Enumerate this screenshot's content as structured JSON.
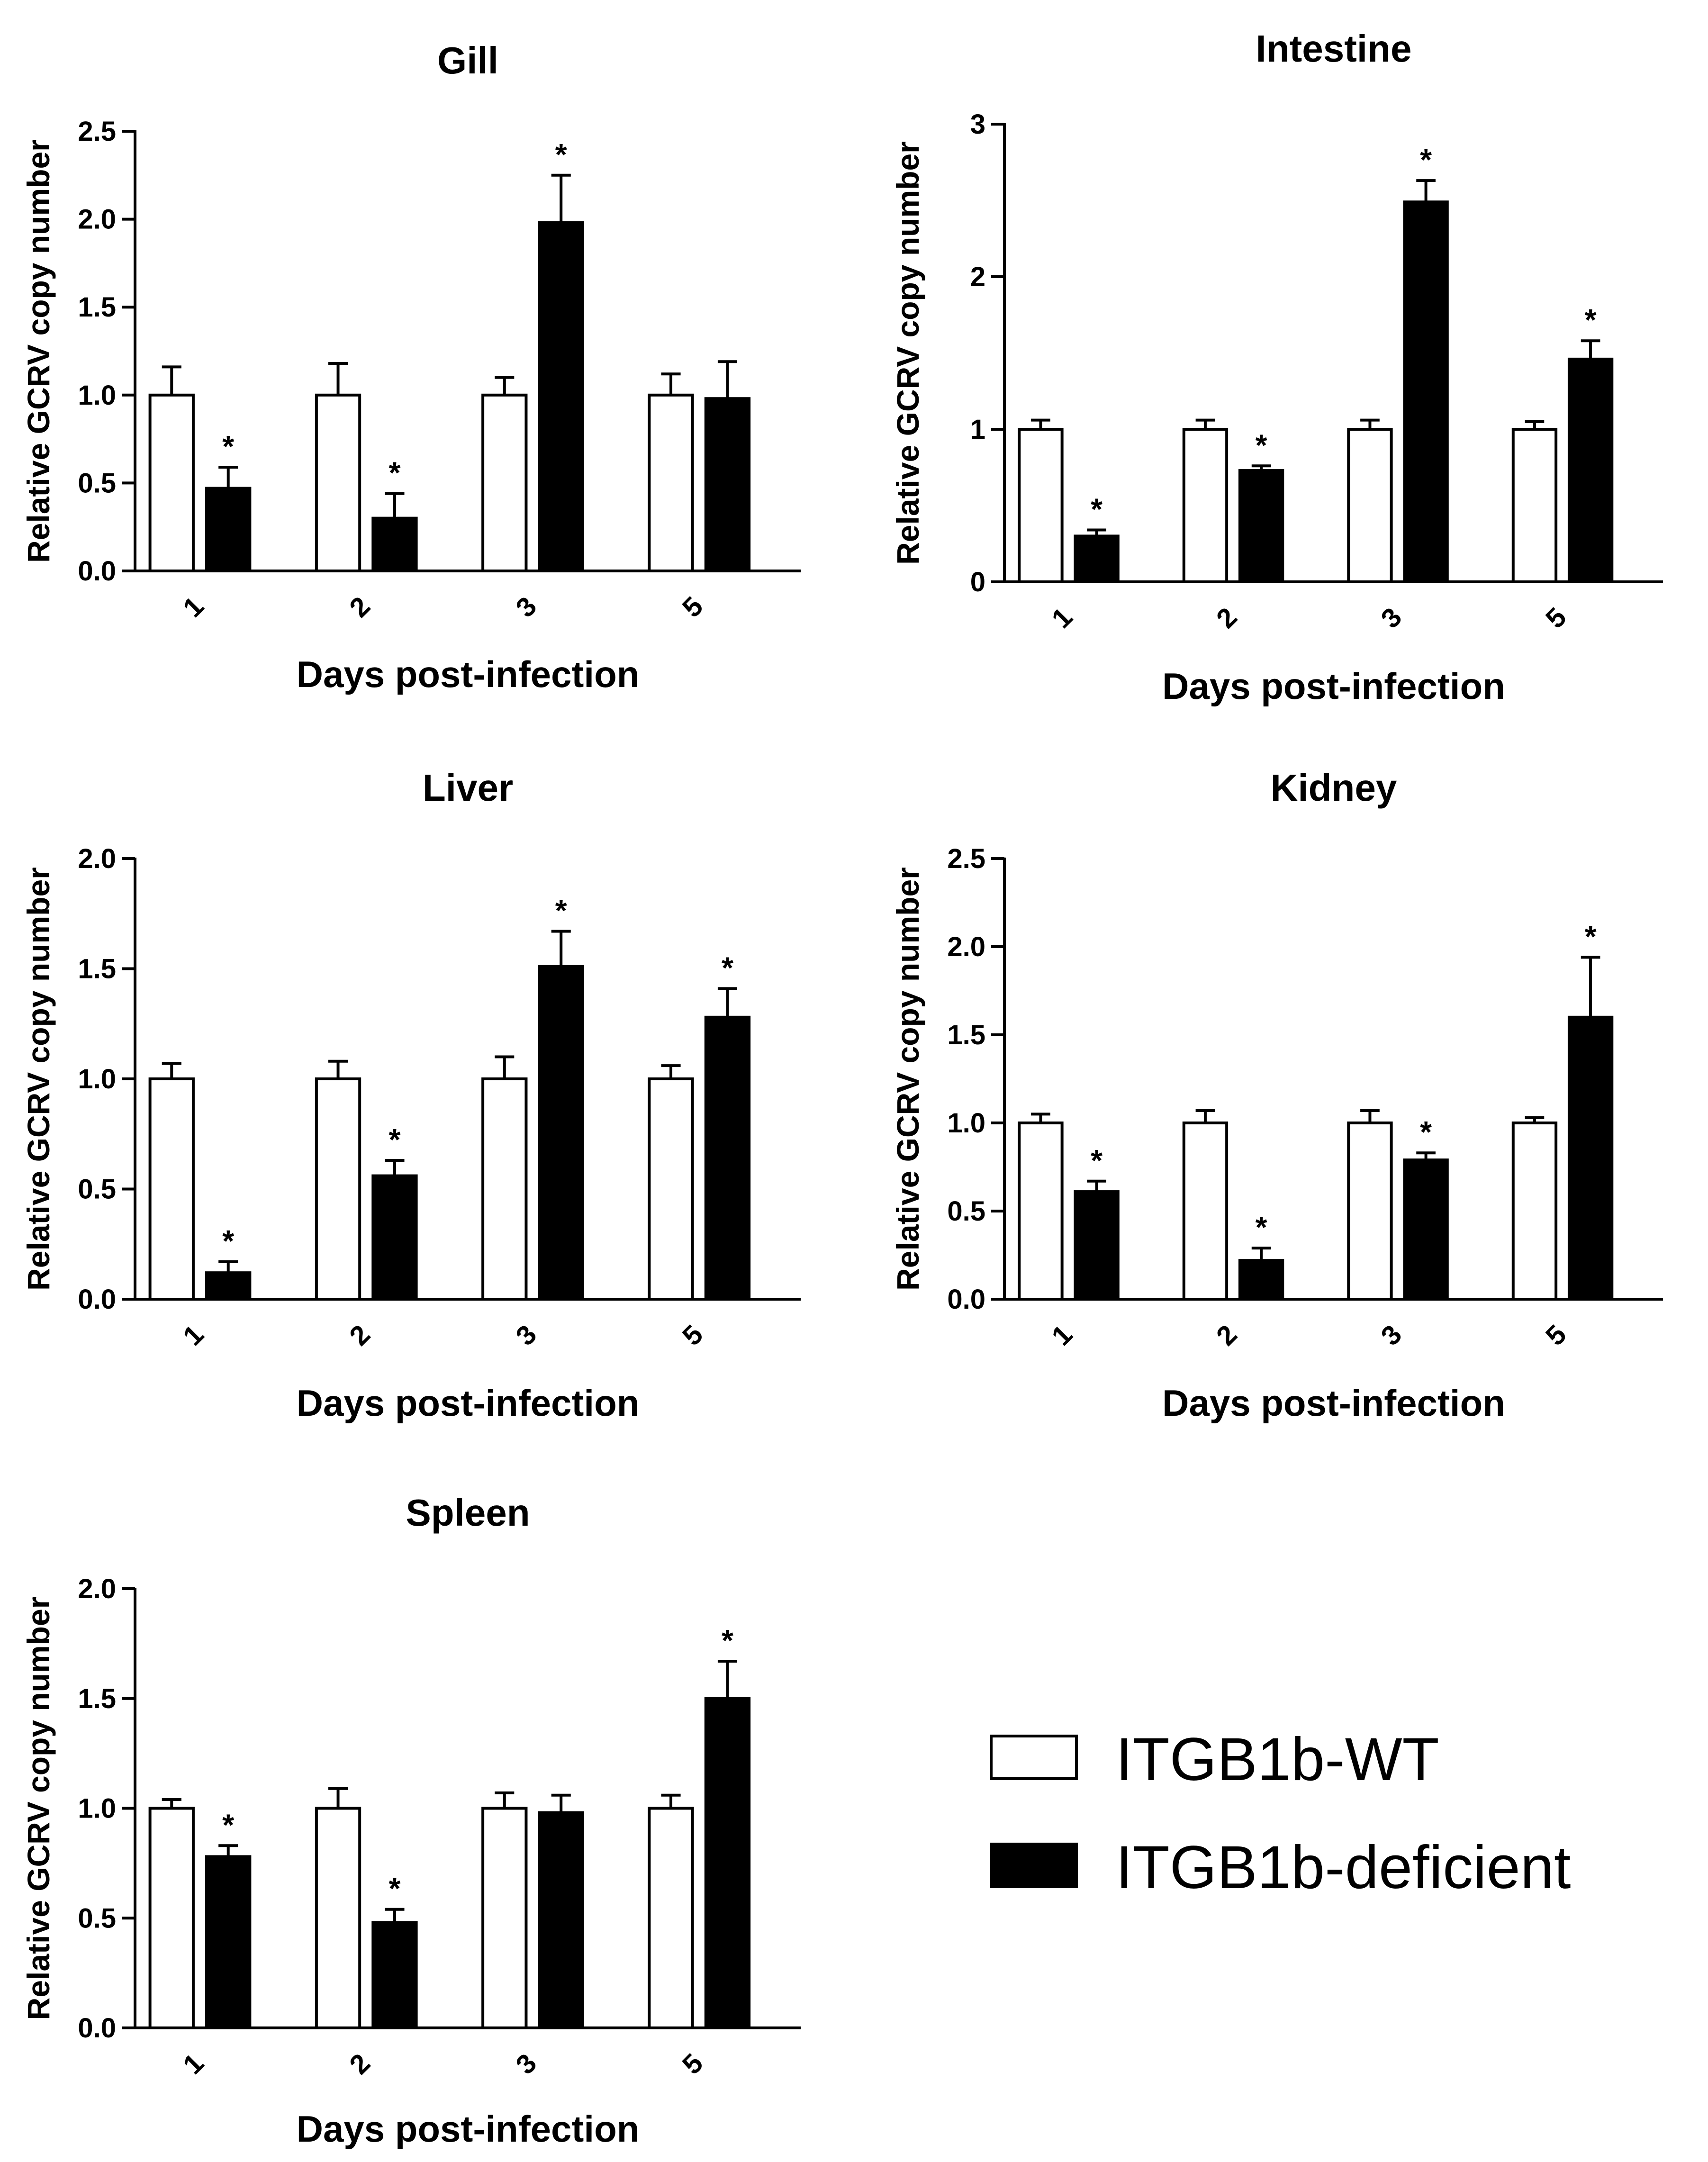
{
  "figure": {
    "legend": {
      "entries": [
        {
          "label": "ITGB1b-WT",
          "fill": "#ffffff"
        },
        {
          "label": "ITGB1b-deficient",
          "fill": "#000000"
        }
      ]
    }
  },
  "chart_data": [
    {
      "type": "bar",
      "title": "Gill",
      "xlabel": "Days post-infection",
      "ylabel": "Relative GCRV copy number",
      "categories": [
        "1",
        "2",
        "3",
        "5"
      ],
      "ylim": [
        0,
        2.5
      ],
      "yticks": [
        "0.0",
        "0.5",
        "1.0",
        "1.5",
        "2.0",
        "2.5"
      ],
      "series": [
        {
          "name": "ITGB1b-WT",
          "values": [
            1.0,
            1.0,
            1.0,
            1.0
          ],
          "errors": [
            0.16,
            0.18,
            0.1,
            0.12
          ]
        },
        {
          "name": "ITGB1b-deficient",
          "values": [
            0.47,
            0.3,
            1.98,
            0.98
          ],
          "errors": [
            0.12,
            0.14,
            0.27,
            0.21
          ]
        }
      ],
      "significance": [
        "*",
        "*",
        "*",
        ""
      ]
    },
    {
      "type": "bar",
      "title": "Intestine",
      "xlabel": "Days post-infection",
      "ylabel": "Relative GCRV copy number",
      "categories": [
        "1",
        "2",
        "3",
        "5"
      ],
      "ylim": [
        0,
        3
      ],
      "yticks": [
        "0",
        "1",
        "2",
        "3"
      ],
      "series": [
        {
          "name": "ITGB1b-WT",
          "values": [
            1.0,
            1.0,
            1.0,
            1.0
          ],
          "errors": [
            0.06,
            0.06,
            0.06,
            0.05
          ]
        },
        {
          "name": "ITGB1b-deficient",
          "values": [
            0.3,
            0.73,
            2.49,
            1.46
          ],
          "errors": [
            0.04,
            0.03,
            0.14,
            0.12
          ]
        }
      ],
      "significance": [
        "*",
        "*",
        "*",
        "*"
      ]
    },
    {
      "type": "bar",
      "title": "Liver",
      "xlabel": "Days post-infection",
      "ylabel": "Relative GCRV copy number",
      "categories": [
        "1",
        "2",
        "3",
        "5"
      ],
      "ylim": [
        0,
        2.0
      ],
      "yticks": [
        "0.0",
        "0.5",
        "1.0",
        "1.5",
        "2.0"
      ],
      "series": [
        {
          "name": "ITGB1b-WT",
          "values": [
            1.0,
            1.0,
            1.0,
            1.0
          ],
          "errors": [
            0.07,
            0.08,
            0.1,
            0.06
          ]
        },
        {
          "name": "ITGB1b-deficient",
          "values": [
            0.12,
            0.56,
            1.51,
            1.28
          ],
          "errors": [
            0.05,
            0.07,
            0.16,
            0.13
          ]
        }
      ],
      "significance": [
        "*",
        "*",
        "*",
        "*"
      ]
    },
    {
      "type": "bar",
      "title": "Kidney",
      "xlabel": "Days post-infection",
      "ylabel": "Relative GCRV copy number",
      "categories": [
        "1",
        "2",
        "3",
        "5"
      ],
      "ylim": [
        0,
        2.5
      ],
      "yticks": [
        "0.0",
        "0.5",
        "1.0",
        "1.5",
        "2.0",
        "2.5"
      ],
      "series": [
        {
          "name": "ITGB1b-WT",
          "values": [
            1.0,
            1.0,
            1.0,
            1.0
          ],
          "errors": [
            0.05,
            0.07,
            0.07,
            0.03
          ]
        },
        {
          "name": "ITGB1b-deficient",
          "values": [
            0.61,
            0.22,
            0.79,
            1.6
          ],
          "errors": [
            0.06,
            0.07,
            0.04,
            0.34
          ]
        }
      ],
      "significance": [
        "*",
        "*",
        "*",
        "*"
      ]
    },
    {
      "type": "bar",
      "title": "Spleen",
      "xlabel": "Days post-infection",
      "ylabel": "Relative GCRV copy number",
      "categories": [
        "1",
        "2",
        "3",
        "5"
      ],
      "ylim": [
        0,
        2.0
      ],
      "yticks": [
        "0.0",
        "0.5",
        "1.0",
        "1.5",
        "2.0"
      ],
      "series": [
        {
          "name": "ITGB1b-WT",
          "values": [
            1.0,
            1.0,
            1.0,
            1.0
          ],
          "errors": [
            0.04,
            0.09,
            0.07,
            0.06
          ]
        },
        {
          "name": "ITGB1b-deficient",
          "values": [
            0.78,
            0.48,
            0.98,
            1.5
          ],
          "errors": [
            0.05,
            0.06,
            0.08,
            0.17
          ]
        }
      ],
      "significance": [
        "*",
        "*",
        "",
        "*"
      ]
    }
  ]
}
